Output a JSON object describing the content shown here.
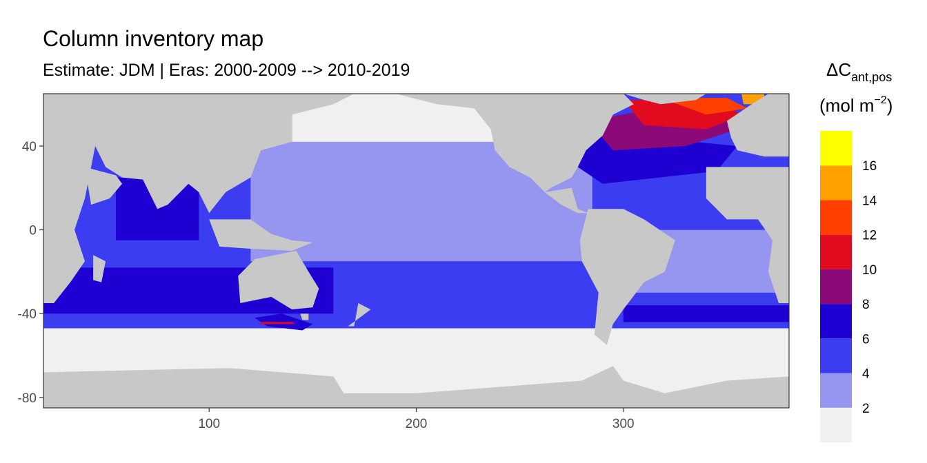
{
  "chart_data": {
    "type": "heatmap",
    "title": "Column inventory map",
    "subtitle": "Estimate: JDM  | Eras: 2000-2009 --> 2010-2019",
    "xlabel": "",
    "ylabel": "",
    "xlim": [
      20,
      380
    ],
    "ylim": [
      -85,
      65
    ],
    "x_ticks": [
      100,
      200,
      300
    ],
    "y_ticks": [
      40,
      0,
      -40,
      -80
    ],
    "land_color": "#c8c8c8",
    "grid": false,
    "legend": {
      "title_main": "ΔC",
      "title_sub": "ant,pos",
      "unit_open": "(mol m",
      "unit_exp": "−2",
      "unit_close": ")",
      "placement": "right",
      "bins": [
        {
          "lower": 0,
          "upper": 2,
          "color": "#f0f0f0"
        },
        {
          "lower": 2,
          "upper": 4,
          "color": "#9696f0"
        },
        {
          "lower": 4,
          "upper": 6,
          "color": "#3c3cf0"
        },
        {
          "lower": 6,
          "upper": 8,
          "color": "#1e00d2"
        },
        {
          "lower": 8,
          "upper": 10,
          "color": "#8c0a78"
        },
        {
          "lower": 10,
          "upper": 12,
          "color": "#e10a1e"
        },
        {
          "lower": 12,
          "upper": 14,
          "color": "#ff4000"
        },
        {
          "lower": 14,
          "upper": 16,
          "color": "#ffa000"
        },
        {
          "lower": 16,
          "upper": 18,
          "color": "#ffff00"
        }
      ],
      "break_labels": [
        "2",
        "4",
        "6",
        "8",
        "10",
        "12",
        "14",
        "16"
      ]
    }
  }
}
